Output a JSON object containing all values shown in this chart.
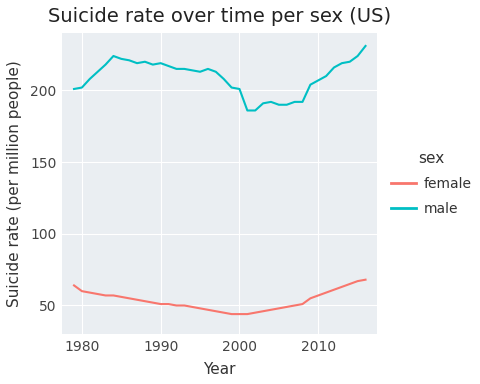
{
  "title": "Suicide rate over time per sex (US)",
  "xlabel": "Year",
  "ylabel": "Suicide rate (per million people)",
  "plot_bg_color": "#EAEEF2",
  "figure_bg_color": "#FFFFFF",
  "grid_color": "#FFFFFF",
  "years": [
    1979,
    1980,
    1981,
    1982,
    1983,
    1984,
    1985,
    1986,
    1987,
    1988,
    1989,
    1990,
    1991,
    1992,
    1993,
    1994,
    1995,
    1996,
    1997,
    1998,
    1999,
    2000,
    2001,
    2002,
    2003,
    2004,
    2005,
    2006,
    2007,
    2008,
    2009,
    2010,
    2011,
    2012,
    2013,
    2014,
    2015,
    2016
  ],
  "male": [
    201,
    202,
    208,
    213,
    218,
    224,
    222,
    221,
    219,
    220,
    218,
    219,
    217,
    215,
    215,
    214,
    213,
    215,
    213,
    208,
    202,
    201,
    186,
    186,
    191,
    192,
    190,
    190,
    192,
    192,
    204,
    207,
    210,
    216,
    219,
    220,
    224,
    231
  ],
  "female": [
    64,
    60,
    59,
    58,
    57,
    57,
    56,
    55,
    54,
    53,
    52,
    51,
    51,
    50,
    50,
    49,
    48,
    47,
    46,
    45,
    44,
    44,
    44,
    45,
    46,
    47,
    48,
    49,
    50,
    51,
    55,
    57,
    59,
    61,
    63,
    65,
    67,
    68
  ],
  "male_color": "#00BFC4",
  "female_color": "#F8766D",
  "legend_title": "sex",
  "legend_female": "female",
  "legend_male": "male",
  "ylim": [
    30,
    240
  ],
  "yticks": [
    50,
    100,
    150,
    200
  ],
  "xlim": [
    1977.5,
    2017.5
  ],
  "xticks": [
    1980,
    1990,
    2000,
    2010
  ],
  "title_fontsize": 14,
  "axis_label_fontsize": 11,
  "tick_fontsize": 10,
  "legend_fontsize": 10,
  "legend_title_fontsize": 11,
  "line_width": 1.5
}
